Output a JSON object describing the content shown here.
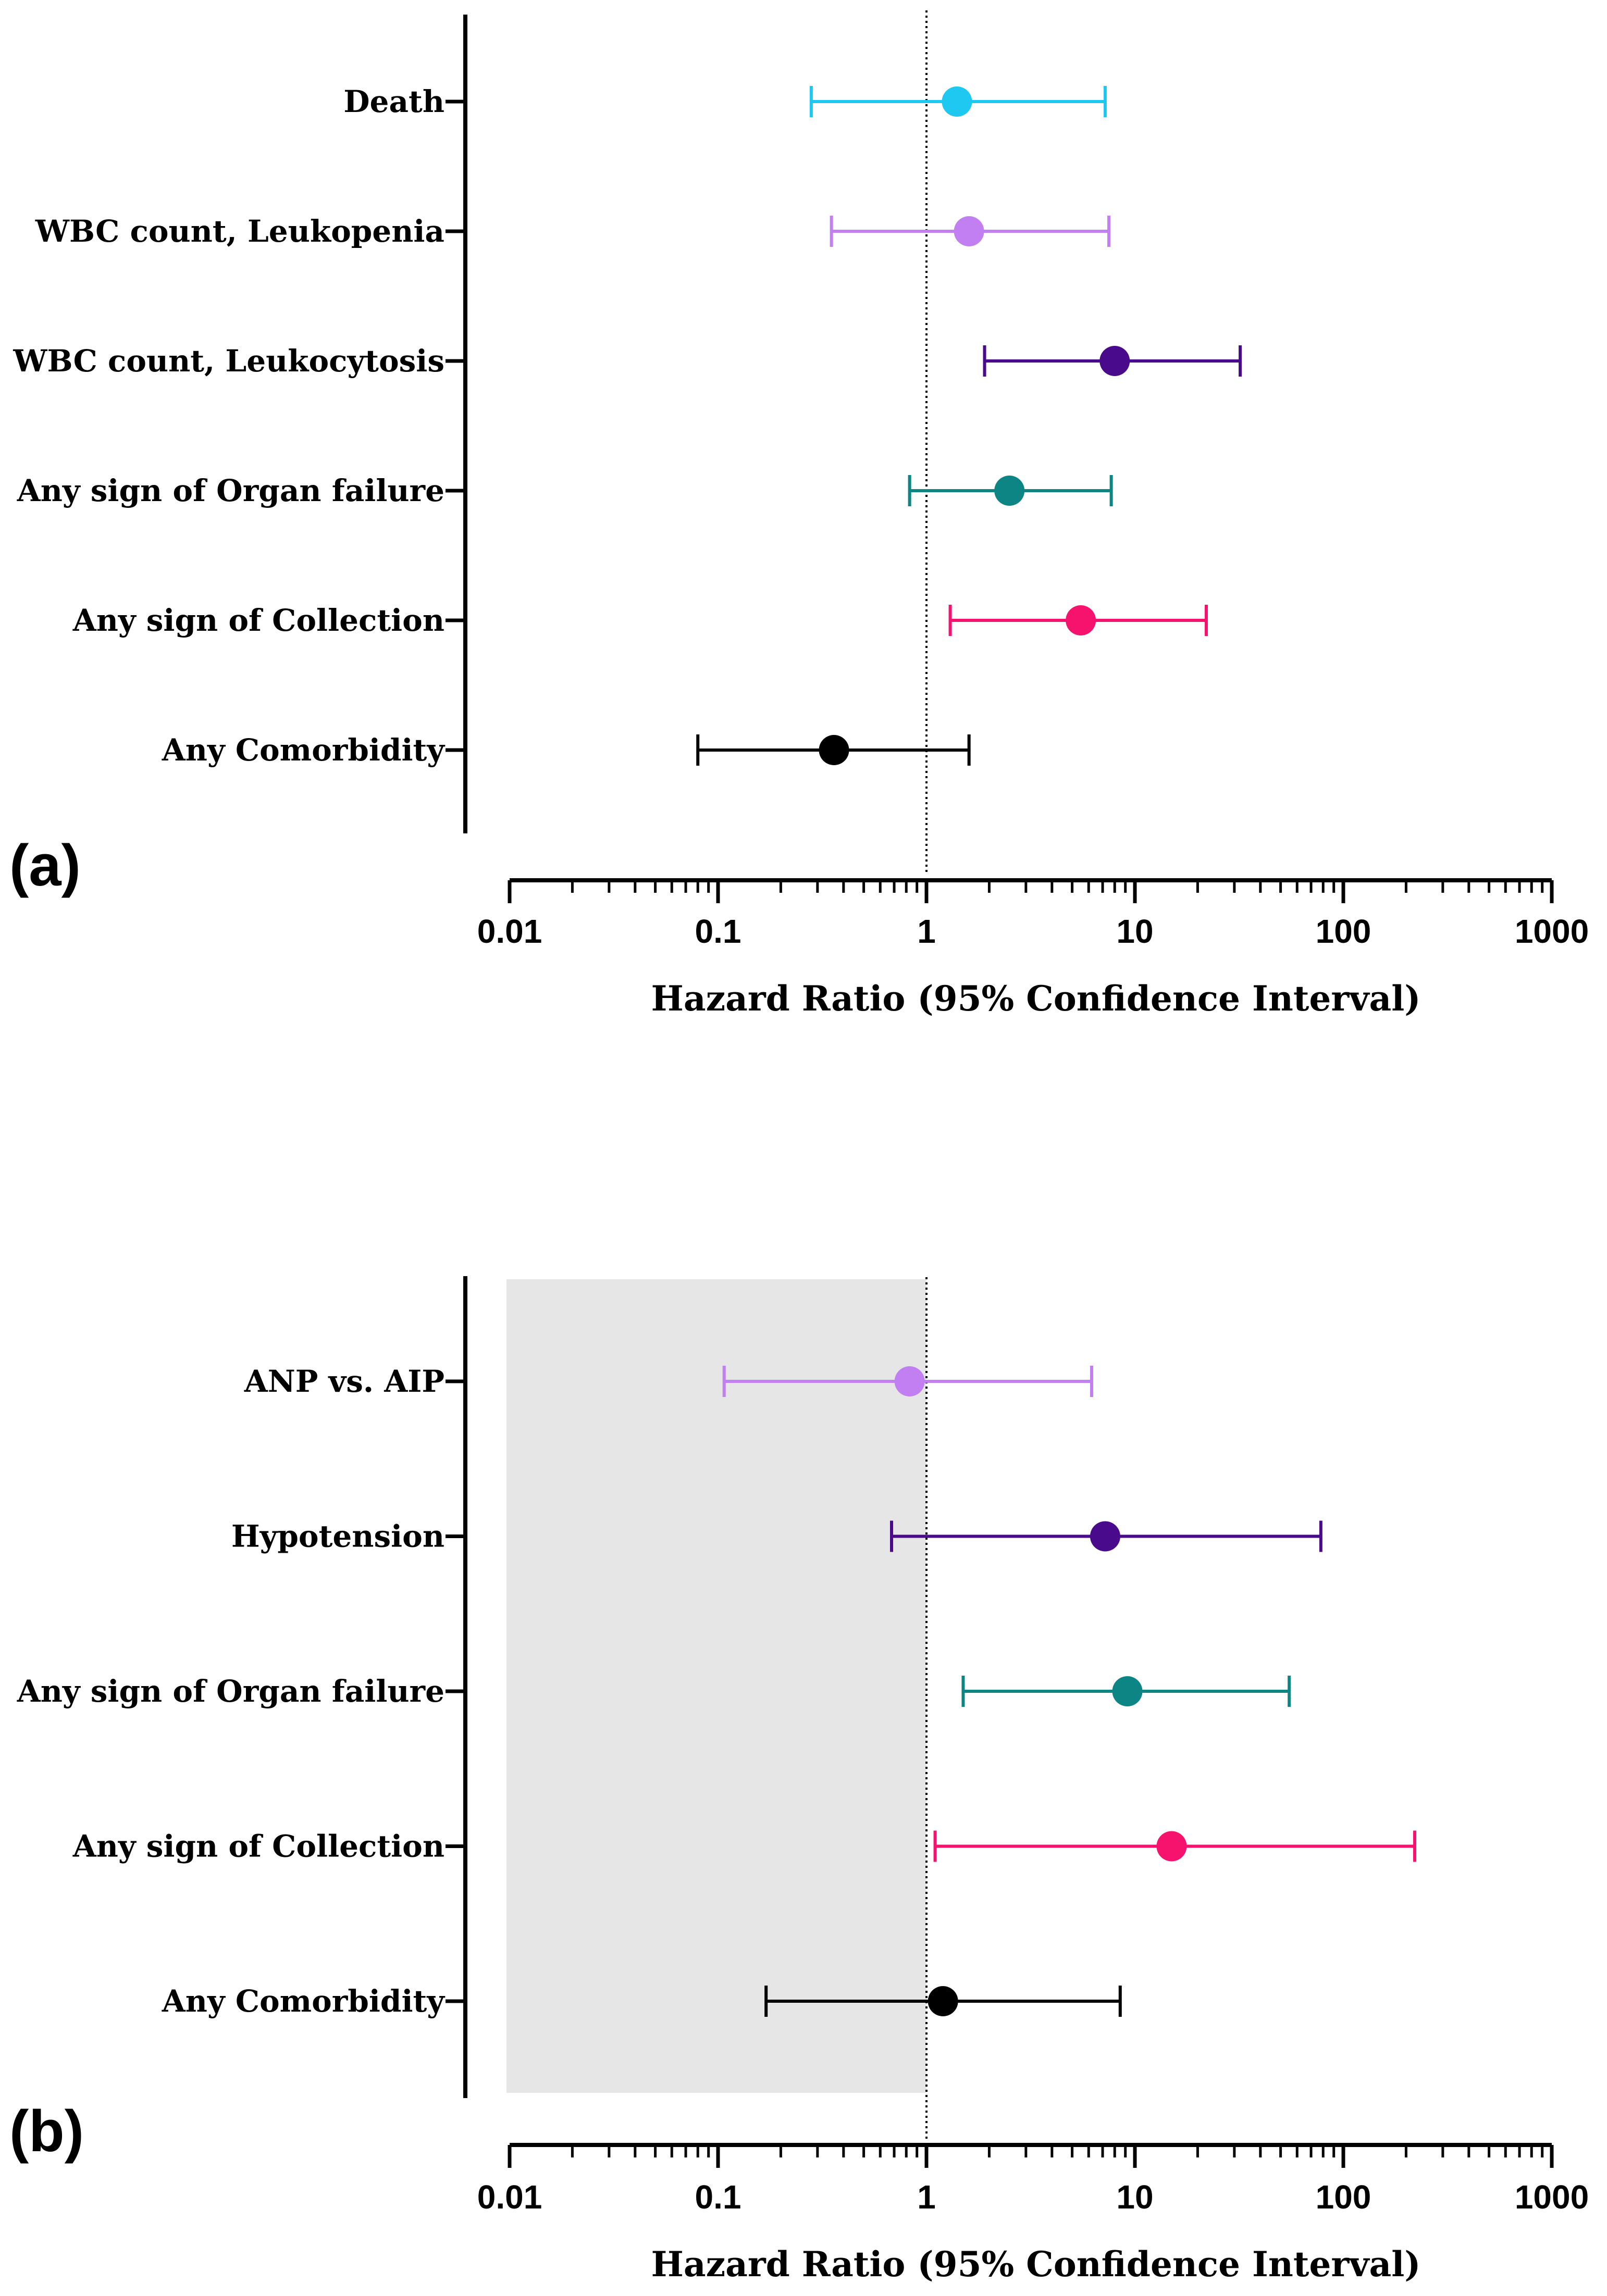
{
  "chart_data": [
    {
      "type": "scatter",
      "panel_label": "(a)",
      "xlabel": "Hazard Ratio (95% Confidence Interval)",
      "x_scale": "log",
      "xlim": [
        0.01,
        1000
      ],
      "x_ticks": [
        "0.01",
        "0.1",
        "1",
        "10",
        "100",
        "1000"
      ],
      "reference_line": 1,
      "shaded_region": null,
      "rows": [
        {
          "label": "Death",
          "hr": 1.4,
          "lower": 0.28,
          "upper": 7.2,
          "color": "#1ec8f0"
        },
        {
          "label": "WBC count, Leukopenia",
          "hr": 1.6,
          "lower": 0.35,
          "upper": 7.5,
          "color": "#c17ff2"
        },
        {
          "label": "WBC count, Leukocytosis",
          "hr": 8.0,
          "lower": 1.9,
          "upper": 32,
          "color": "#4a0a8c"
        },
        {
          "label": "Any sign of Organ failure",
          "hr": 2.5,
          "lower": 0.83,
          "upper": 7.7,
          "color": "#0e8585"
        },
        {
          "label": "Any sign of Collection",
          "hr": 5.5,
          "lower": 1.3,
          "upper": 22,
          "color": "#f5136e"
        },
        {
          "label": "Any Comorbidity",
          "hr": 0.36,
          "lower": 0.08,
          "upper": 1.6,
          "color": "#000000"
        }
      ]
    },
    {
      "type": "scatter",
      "panel_label": "(b)",
      "xlabel": "Hazard Ratio (95% Confidence Interval)",
      "x_scale": "log",
      "xlim": [
        0.01,
        1000
      ],
      "x_ticks": [
        "0.01",
        "0.1",
        "1",
        "10",
        "100",
        "1000"
      ],
      "reference_line": 1,
      "shaded_region": [
        0.01,
        1
      ],
      "rows": [
        {
          "label": "ANP vs. AIP",
          "hr": 0.83,
          "lower": 0.107,
          "upper": 6.2,
          "color": "#c17ff2"
        },
        {
          "label": "Hypotension",
          "hr": 7.2,
          "lower": 0.68,
          "upper": 78,
          "color": "#4a0a8c"
        },
        {
          "label": "Any sign of Organ failure",
          "hr": 9.2,
          "lower": 1.5,
          "upper": 55,
          "color": "#0e8585"
        },
        {
          "label": "Any sign of Collection",
          "hr": 15,
          "lower": 1.1,
          "upper": 220,
          "color": "#f5136e"
        },
        {
          "label": "Any Comorbidity",
          "hr": 1.2,
          "lower": 0.17,
          "upper": 8.5,
          "color": "#000000"
        }
      ]
    }
  ]
}
